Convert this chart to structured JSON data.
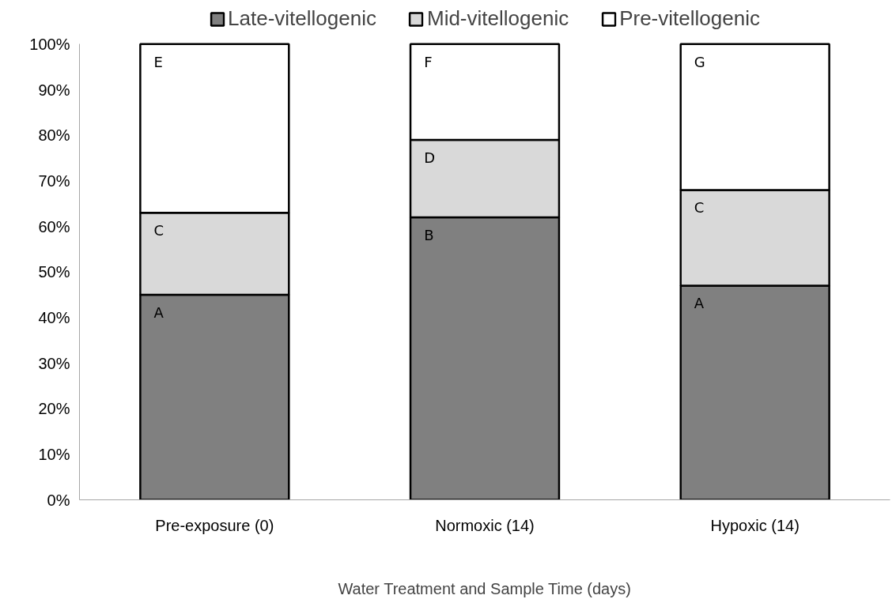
{
  "chart_data": {
    "type": "bar",
    "stacked": true,
    "xlabel": "Water Treatment and Sample Time (days)",
    "categories": [
      "Pre-exposure (0)",
      "Normoxic (14)",
      "Hypoxic (14)"
    ],
    "series": [
      {
        "name": "Late-vitellogenic",
        "color": "#808080",
        "values": [
          45,
          62,
          47
        ],
        "value_labels": [
          "A",
          "B",
          "A"
        ]
      },
      {
        "name": "Mid-vitellogenic",
        "color": "#d9d9d9",
        "values": [
          18,
          17,
          21
        ],
        "value_labels": [
          "C",
          "D",
          "C"
        ]
      },
      {
        "name": "Pre-vitellogenic",
        "color": "#ffffff",
        "values": [
          37,
          21,
          32
        ],
        "value_labels": [
          "E",
          "F",
          "G"
        ]
      }
    ],
    "ylim": [
      0,
      100
    ],
    "yticks": [
      {
        "value": 0,
        "label": "0%"
      },
      {
        "value": 10,
        "label": "10%"
      },
      {
        "value": 20,
        "label": "20%"
      },
      {
        "value": 30,
        "label": "30%"
      },
      {
        "value": 40,
        "label": "40%"
      },
      {
        "value": 50,
        "label": "50%"
      },
      {
        "value": 60,
        "label": "60%"
      },
      {
        "value": 70,
        "label": "70%"
      },
      {
        "value": 80,
        "label": "80%"
      },
      {
        "value": 90,
        "label": "90%"
      },
      {
        "value": 100,
        "label": "100%"
      }
    ],
    "grid": false,
    "legend": "top"
  }
}
